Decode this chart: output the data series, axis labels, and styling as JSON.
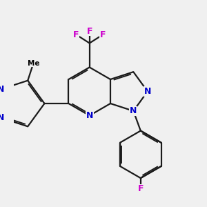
{
  "bg_color": "#f0f0f0",
  "bond_color": "#1a1a1a",
  "N_color": "#0000cc",
  "F_color": "#cc00cc",
  "lw": 1.6,
  "dbs": 0.06,
  "fig_size": [
    3.0,
    3.0
  ],
  "dpi": 100,
  "font_size": 9.0,
  "xlim": [
    -1.5,
    6.5
  ],
  "ylim": [
    -4.5,
    3.5
  ]
}
